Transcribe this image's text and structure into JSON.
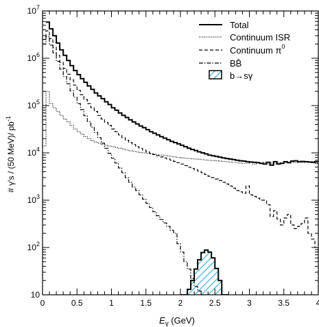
{
  "chart_data": {
    "type": "histogram-step",
    "xlabel": "E",
    "xlabel_sub": "γ",
    "xlabel_unit": " (GeV)",
    "ylabel": "# γ's / (50 MeV)/ pb",
    "ylabel_sup": "-1",
    "x_ticks": [
      "0",
      "0.5",
      "1",
      "1.5",
      "2",
      "2.5",
      "3",
      "3.5",
      "4"
    ],
    "x_tick_values": [
      0,
      0.5,
      1,
      1.5,
      2,
      2.5,
      3,
      3.5,
      4
    ],
    "y_ticks": [
      {
        "base": "10",
        "exp": ""
      },
      {
        "base": "10",
        "exp": "2"
      },
      {
        "base": "10",
        "exp": "3"
      },
      {
        "base": "10",
        "exp": "4"
      },
      {
        "base": "10",
        "exp": "5"
      },
      {
        "base": "10",
        "exp": "6"
      },
      {
        "base": "10",
        "exp": "7"
      }
    ],
    "xlim": [
      0,
      4
    ],
    "ylim": [
      10,
      10000000
    ],
    "log_y": true,
    "bin_width": 0.05,
    "legend_position": "top-right",
    "legend": [
      {
        "key": "total",
        "label": "Total",
        "style": "solid-thick"
      },
      {
        "key": "isr",
        "label": "Continuum ISR",
        "style": "dotted"
      },
      {
        "key": "pi0",
        "label": "Continuum π",
        "label_sup": "0",
        "style": "dashed"
      },
      {
        "key": "bb",
        "label": "BB̄",
        "style": "dash-dot"
      },
      {
        "key": "bsg",
        "label": "b→sγ",
        "style": "hatched-fill"
      }
    ],
    "series": {
      "total": {
        "x_start": 0.05,
        "values": [
          5800000,
          4200000,
          3000000,
          2100000,
          1500000,
          1150000,
          900000,
          700000,
          550000,
          450000,
          370000,
          310000,
          260000,
          220000,
          185000,
          160000,
          140000,
          120000,
          105000,
          90000,
          80000,
          70000,
          62000,
          56000,
          50000,
          45000,
          41000,
          37000,
          34000,
          31000,
          28000,
          26000,
          24000,
          22000,
          20500,
          19000,
          17500,
          16500,
          15500,
          14500,
          13500,
          12500,
          11800,
          11200,
          10500,
          10000,
          9500,
          9000,
          8700,
          8400,
          8100,
          7800,
          7600,
          7400,
          7200,
          7000,
          6800,
          6700,
          6500,
          6400,
          6300,
          6200,
          6000,
          5800,
          6300,
          5500,
          6500,
          5800,
          6000,
          6500,
          6200,
          6700,
          6800,
          6500,
          6600,
          6500,
          6400,
          6300,
          6500
        ]
      },
      "isr": {
        "x_start": 0.0,
        "values": [
          14000,
          200000,
          110000,
          90000,
          75000,
          62000,
          52000,
          45000,
          38000,
          32000,
          28000,
          25000,
          22000,
          20000,
          18000,
          17000,
          16000,
          15000,
          14500,
          14000,
          13500,
          13000,
          12500,
          12000,
          11500,
          11000,
          10800,
          10500,
          10200,
          10000,
          9800,
          9600,
          9400,
          9200,
          9000,
          8800,
          8600,
          8400,
          8200,
          8000,
          7800,
          7700,
          7600,
          7500,
          7400,
          7300,
          7200,
          7100,
          7000,
          6900,
          6800,
          6700,
          6600,
          6500,
          6400,
          6300,
          6200,
          6100,
          6000,
          6000,
          6500,
          5800,
          6200,
          5900,
          6300,
          5800,
          6100,
          5900,
          6200,
          6000,
          6300,
          6100,
          6400,
          6200,
          6300,
          6300,
          6400,
          6300,
          6500,
          6500
        ]
      },
      "pi0": {
        "x_start": 0.0,
        "values": [
          2500000,
          3800000,
          2600000,
          1700000,
          1150000,
          820000,
          610000,
          460000,
          350000,
          270000,
          210000,
          170000,
          135000,
          110000,
          90000,
          75000,
          62000,
          52000,
          44000,
          38000,
          32000,
          28000,
          24000,
          21000,
          18500,
          16500,
          15000,
          13500,
          12500,
          11500,
          10500,
          9800,
          9200,
          8700,
          8200,
          7800,
          7400,
          7000,
          6600,
          6200,
          5800,
          5400,
          5000,
          4700,
          4400,
          4100,
          3800,
          3500,
          3200,
          3000,
          2800,
          2600,
          2400,
          2200,
          2000,
          1800,
          1600,
          1500,
          1400,
          2000,
          1300,
          1200,
          1100,
          1000,
          1000,
          800,
          450,
          600,
          400,
          300,
          420,
          500,
          300,
          250,
          280,
          320,
          420,
          200,
          150,
          100,
          80
        ]
      },
      "bb": {
        "x_start": 0.0,
        "values": [
          2000000,
          2900000,
          1900000,
          1300000,
          860000,
          590000,
          410000,
          290000,
          205000,
          150000,
          110000,
          82000,
          61000,
          46000,
          35000,
          27000,
          21000,
          16000,
          12500,
          9800,
          7700,
          6100,
          4800,
          3800,
          3000,
          2400,
          1900,
          1600,
          1300,
          1050,
          860,
          700,
          570,
          470,
          390,
          330,
          280,
          230,
          200,
          120,
          80,
          50,
          35,
          22,
          15,
          12,
          10,
          10
        ]
      },
      "bsg": {
        "x_start": 2.0,
        "values": [
          10,
          10,
          13,
          20,
          35,
          55,
          78,
          88,
          80,
          60,
          36,
          20,
          10,
          10
        ]
      }
    }
  }
}
